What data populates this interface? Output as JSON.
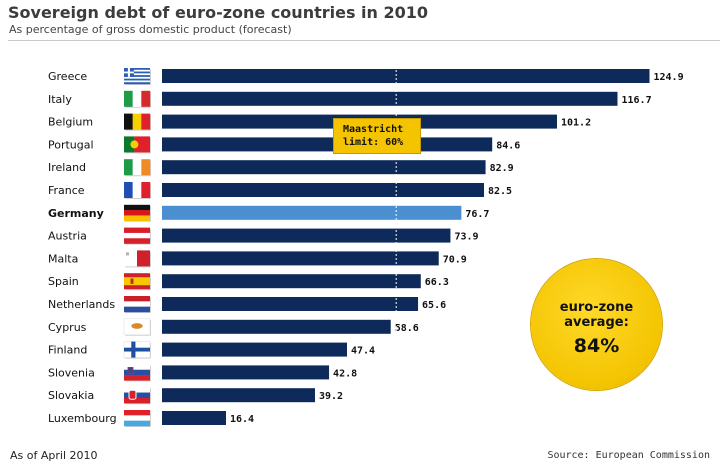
{
  "chart_data": {
    "type": "bar",
    "orientation": "horizontal",
    "title": "Sovereign debt of euro-zone countries in 2010",
    "subtitle": "As percentage of gross domestic product (forecast)",
    "categories": [
      "Greece",
      "Italy",
      "Belgium",
      "Portugal",
      "Ireland",
      "France",
      "Germany",
      "Austria",
      "Malta",
      "Spain",
      "Netherlands",
      "Cyprus",
      "Finland",
      "Slovenia",
      "Slovakia",
      "Luxembourg"
    ],
    "values": [
      124.9,
      116.7,
      101.2,
      84.6,
      82.9,
      82.5,
      76.7,
      73.9,
      70.9,
      66.3,
      65.6,
      58.6,
      47.4,
      42.8,
      39.2,
      16.4
    ],
    "value_labels": [
      "124.9",
      "116.7",
      "101.2",
      "84.6",
      "82.9",
      "82.5",
      "76.7",
      "73.9",
      "70.9",
      "66.3",
      "65.6",
      "58.6",
      "47.4",
      "42.8",
      "39.2",
      "16.4"
    ],
    "highlight": "Germany",
    "xlim": [
      0,
      130
    ],
    "reference_line": {
      "value": 60,
      "label": "Maastricht\nlimit: 60%"
    },
    "average_label": "euro-zone\naverage:",
    "average_value": "84%",
    "footnote": "As of April 2010",
    "source": "Source: European Commission",
    "colors": {
      "bar": "#0e2a5a",
      "highlight": "#4a8fd0",
      "marker": "#f5c400"
    },
    "flags": [
      {
        "icon": "greece-flag-icon"
      },
      {
        "icon": "italy-flag-icon"
      },
      {
        "icon": "belgium-flag-icon"
      },
      {
        "icon": "portugal-flag-icon"
      },
      {
        "icon": "ireland-flag-icon"
      },
      {
        "icon": "france-flag-icon"
      },
      {
        "icon": "germany-flag-icon"
      },
      {
        "icon": "austria-flag-icon"
      },
      {
        "icon": "malta-flag-icon"
      },
      {
        "icon": "spain-flag-icon"
      },
      {
        "icon": "netherlands-flag-icon"
      },
      {
        "icon": "cyprus-flag-icon"
      },
      {
        "icon": "finland-flag-icon"
      },
      {
        "icon": "slovenia-flag-icon"
      },
      {
        "icon": "slovakia-flag-icon"
      },
      {
        "icon": "luxembourg-flag-icon"
      }
    ]
  }
}
